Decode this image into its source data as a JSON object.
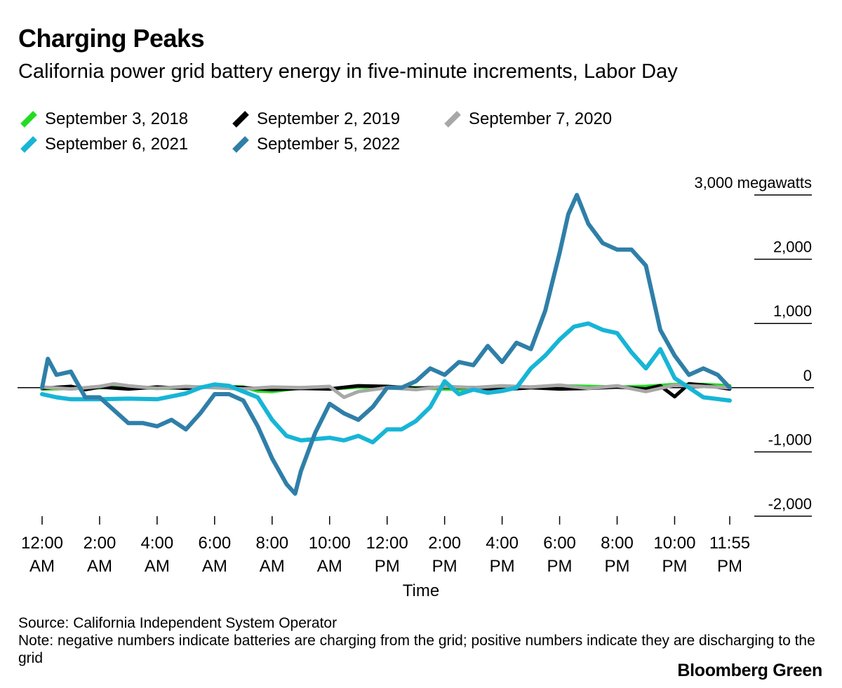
{
  "title": "Charging Peaks",
  "subtitle": "California power grid battery energy in five-minute increments, Labor Day",
  "legend": [
    {
      "label": "September 3, 2018",
      "color": "#22dd22"
    },
    {
      "label": "September 2, 2019",
      "color": "#000000"
    },
    {
      "label": "September 7, 2020",
      "color": "#a8a8a8"
    },
    {
      "label": "September 6, 2021",
      "color": "#17b5d6"
    },
    {
      "label": "September 5, 2022",
      "color": "#2f7fa8"
    }
  ],
  "footer": {
    "source": "Source: California Independent System Operator",
    "note": "Note: negative numbers indicate batteries are charging from the grid; positive numbers indicate they are discharging to the grid"
  },
  "brand": "Bloomberg Green",
  "chart_data": {
    "type": "line",
    "xlabel": "Time",
    "ylabel": "",
    "ylim": [
      -2000,
      3000
    ],
    "xlim": [
      0,
      23.9167
    ],
    "grid": false,
    "legend_position": "top",
    "y_ticks": [
      {
        "value": 3000,
        "label": "3,000 megawatts"
      },
      {
        "value": 2000,
        "label": "2,000"
      },
      {
        "value": 1000,
        "label": "1,000"
      },
      {
        "value": 0,
        "label": "0"
      },
      {
        "value": -1000,
        "label": "-1,000"
      },
      {
        "value": -2000,
        "label": "-2,000"
      }
    ],
    "x_ticks": [
      {
        "value": 0,
        "line1": "12:00",
        "line2": "AM"
      },
      {
        "value": 2,
        "line1": "2:00",
        "line2": "AM"
      },
      {
        "value": 4,
        "line1": "4:00",
        "line2": "AM"
      },
      {
        "value": 6,
        "line1": "6:00",
        "line2": "AM"
      },
      {
        "value": 8,
        "line1": "8:00",
        "line2": "AM"
      },
      {
        "value": 10,
        "line1": "10:00",
        "line2": "AM"
      },
      {
        "value": 12,
        "line1": "12:00",
        "line2": "PM"
      },
      {
        "value": 14,
        "line1": "2:00",
        "line2": "PM"
      },
      {
        "value": 16,
        "line1": "4:00",
        "line2": "PM"
      },
      {
        "value": 18,
        "line1": "6:00",
        "line2": "PM"
      },
      {
        "value": 20,
        "line1": "8:00",
        "line2": "PM"
      },
      {
        "value": 22,
        "line1": "10:00",
        "line2": "PM"
      },
      {
        "value": 23.9167,
        "line1": "11:55",
        "line2": "PM"
      }
    ],
    "series": [
      {
        "name": "September 3, 2018",
        "color": "#22dd22",
        "x": [
          0,
          1,
          2,
          3,
          4,
          5,
          6,
          7,
          7.5,
          8,
          9,
          10,
          11,
          12,
          13,
          14,
          15,
          16,
          17,
          18,
          19,
          20,
          21,
          22,
          23,
          23.9167
        ],
        "y": [
          -20,
          -10,
          0,
          10,
          -10,
          0,
          20,
          10,
          -50,
          -60,
          0,
          -20,
          10,
          10,
          0,
          -20,
          -30,
          0,
          10,
          30,
          20,
          10,
          20,
          50,
          50,
          30
        ]
      },
      {
        "name": "September 2, 2019",
        "color": "#000000",
        "x": [
          0,
          1,
          1.5,
          2,
          3,
          4,
          5,
          6,
          7,
          8,
          9,
          10,
          11,
          12,
          13,
          14,
          15,
          16,
          17,
          18,
          19,
          20,
          21,
          21.5,
          22,
          22.5,
          23,
          23.9167
        ],
        "y": [
          -10,
          20,
          -30,
          10,
          -20,
          10,
          -10,
          20,
          0,
          -30,
          -10,
          -20,
          30,
          20,
          -10,
          10,
          0,
          -30,
          0,
          -20,
          -10,
          10,
          -20,
          30,
          -140,
          60,
          40,
          -20
        ]
      },
      {
        "name": "September 7, 2020",
        "color": "#a8a8a8",
        "x": [
          0,
          1,
          2,
          2.5,
          3,
          4,
          5,
          6,
          7,
          8,
          9,
          10,
          10.5,
          11,
          12,
          13,
          14,
          15,
          16,
          17,
          18,
          19,
          20,
          21,
          22,
          23,
          23.9167
        ],
        "y": [
          10,
          -20,
          20,
          60,
          30,
          -10,
          20,
          0,
          -20,
          10,
          0,
          20,
          -150,
          -60,
          0,
          -30,
          20,
          0,
          30,
          10,
          40,
          -10,
          30,
          -60,
          40,
          20,
          0
        ]
      },
      {
        "name": "September 6, 2021",
        "color": "#17b5d6",
        "x": [
          0,
          0.5,
          1,
          2,
          3,
          4,
          5,
          5.5,
          6,
          6.5,
          7,
          7.5,
          8,
          8.5,
          9,
          9.5,
          10,
          10.5,
          11,
          11.5,
          12,
          12.5,
          13,
          13.5,
          14,
          14.5,
          15,
          15.5,
          16,
          16.5,
          17,
          17.5,
          18,
          18.5,
          19,
          19.5,
          20,
          20.5,
          21,
          21.5,
          22,
          22.5,
          23,
          23.9167
        ],
        "y": [
          -100,
          -150,
          -180,
          -180,
          -170,
          -180,
          -90,
          0,
          50,
          30,
          -60,
          -150,
          -500,
          -750,
          -820,
          -800,
          -780,
          -820,
          -750,
          -850,
          -650,
          -650,
          -520,
          -300,
          100,
          -100,
          -30,
          -80,
          -50,
          0,
          300,
          500,
          750,
          950,
          1000,
          900,
          850,
          550,
          300,
          600,
          150,
          0,
          -150,
          -200
        ]
      },
      {
        "name": "September 5, 2022",
        "color": "#2f7fa8",
        "x": [
          0,
          0.2,
          0.5,
          1,
          1.5,
          2,
          2.5,
          3,
          3.5,
          4,
          4.5,
          5,
          5.5,
          6,
          6.5,
          7,
          7.5,
          8,
          8.5,
          8.8,
          9,
          9.5,
          10,
          10.5,
          11,
          11.5,
          12,
          12.5,
          13,
          13.5,
          14,
          14.5,
          15,
          15.5,
          16,
          16.5,
          17,
          17.5,
          18,
          18.3,
          18.6,
          19,
          19.5,
          20,
          20.5,
          21,
          21.5,
          22,
          22.5,
          23,
          23.5,
          23.9167
        ],
        "y": [
          0,
          450,
          200,
          250,
          -150,
          -150,
          -350,
          -550,
          -550,
          -600,
          -500,
          -650,
          -400,
          -100,
          -100,
          -200,
          -600,
          -1100,
          -1500,
          -1650,
          -1300,
          -700,
          -250,
          -400,
          -500,
          -300,
          0,
          0,
          100,
          300,
          200,
          400,
          350,
          650,
          400,
          700,
          600,
          1200,
          2100,
          2700,
          3000,
          2550,
          2250,
          2150,
          2150,
          1900,
          900,
          500,
          200,
          300,
          200,
          0
        ]
      }
    ]
  }
}
